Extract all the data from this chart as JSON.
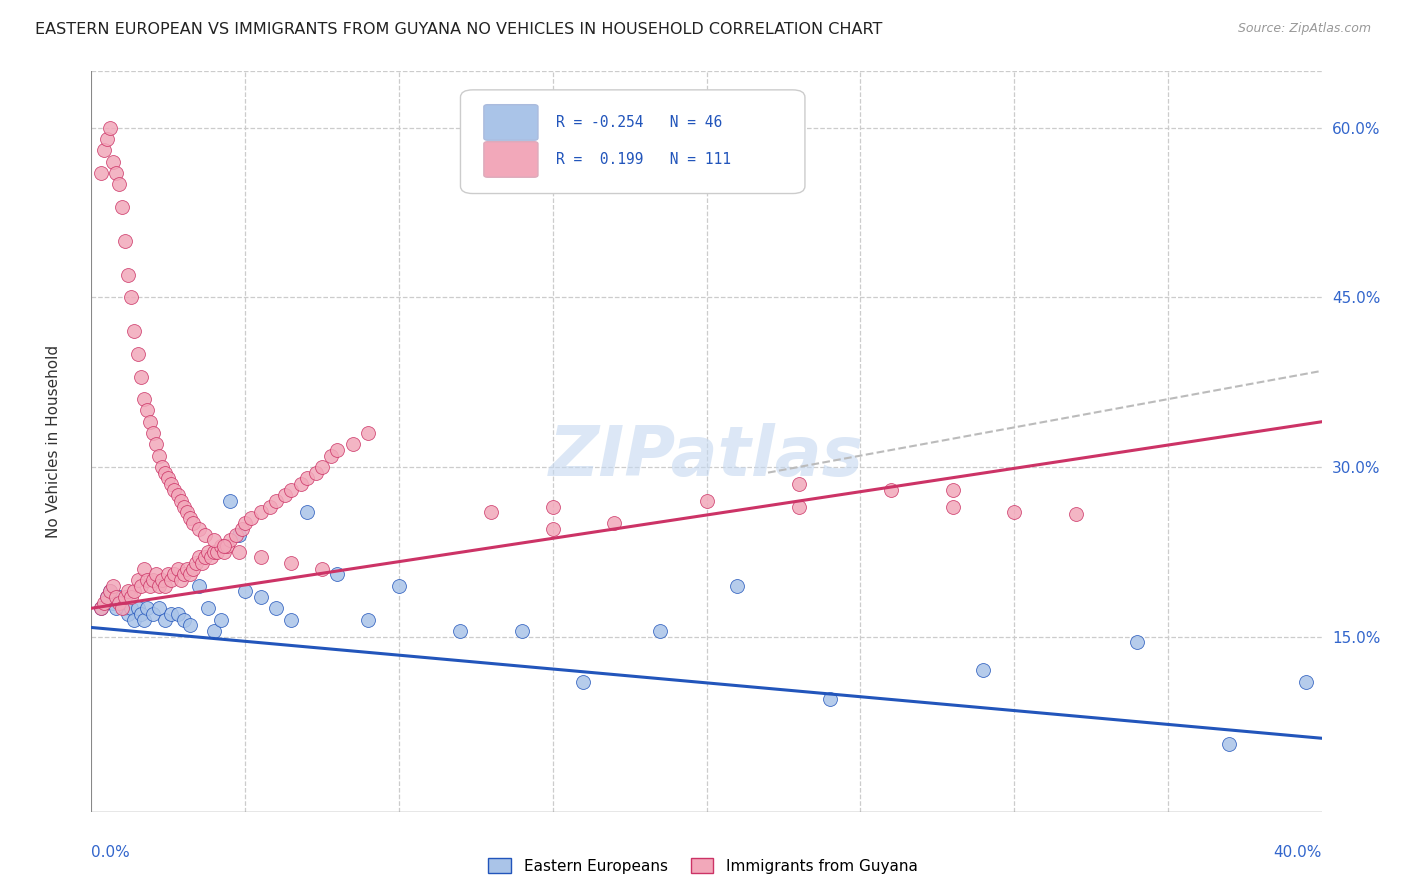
{
  "title": "EASTERN EUROPEAN VS IMMIGRANTS FROM GUYANA NO VEHICLES IN HOUSEHOLD CORRELATION CHART",
  "source": "Source: ZipAtlas.com",
  "ylabel": "No Vehicles in Household",
  "color_eastern": "#aac4e8",
  "color_guyana": "#f2a8ba",
  "line_eastern": "#2255bb",
  "line_guyana": "#cc3366",
  "xlim": [
    0.0,
    0.4
  ],
  "ylim": [
    -0.005,
    0.65
  ],
  "right_ytick_labels": [
    "60.0%",
    "45.0%",
    "30.0%",
    "15.0%"
  ],
  "right_ytick_values": [
    0.6,
    0.45,
    0.3,
    0.15
  ],
  "trendline_eastern": [
    [
      0.0,
      0.158
    ],
    [
      0.4,
      0.06
    ]
  ],
  "trendline_guyana": [
    [
      0.0,
      0.175
    ],
    [
      0.4,
      0.34
    ]
  ],
  "trendline_dashed": [
    [
      0.22,
      0.295
    ],
    [
      0.4,
      0.385
    ]
  ],
  "watermark": "ZIPatlas",
  "eastern_x": [
    0.003,
    0.005,
    0.006,
    0.007,
    0.008,
    0.009,
    0.01,
    0.011,
    0.012,
    0.013,
    0.014,
    0.015,
    0.016,
    0.017,
    0.018,
    0.02,
    0.022,
    0.024,
    0.026,
    0.028,
    0.03,
    0.032,
    0.035,
    0.038,
    0.04,
    0.042,
    0.045,
    0.048,
    0.05,
    0.055,
    0.06,
    0.065,
    0.07,
    0.08,
    0.09,
    0.1,
    0.12,
    0.14,
    0.16,
    0.185,
    0.21,
    0.24,
    0.29,
    0.34,
    0.37,
    0.395
  ],
  "eastern_y": [
    0.175,
    0.185,
    0.19,
    0.18,
    0.175,
    0.185,
    0.18,
    0.175,
    0.17,
    0.175,
    0.165,
    0.175,
    0.17,
    0.165,
    0.175,
    0.17,
    0.175,
    0.165,
    0.17,
    0.17,
    0.165,
    0.16,
    0.195,
    0.175,
    0.155,
    0.165,
    0.27,
    0.24,
    0.19,
    0.185,
    0.175,
    0.165,
    0.26,
    0.205,
    0.165,
    0.195,
    0.155,
    0.155,
    0.11,
    0.155,
    0.195,
    0.095,
    0.12,
    0.145,
    0.055,
    0.11
  ],
  "guyana_x": [
    0.003,
    0.004,
    0.005,
    0.006,
    0.007,
    0.008,
    0.009,
    0.01,
    0.011,
    0.012,
    0.013,
    0.014,
    0.015,
    0.016,
    0.017,
    0.018,
    0.019,
    0.02,
    0.021,
    0.022,
    0.023,
    0.024,
    0.025,
    0.026,
    0.027,
    0.028,
    0.029,
    0.03,
    0.031,
    0.032,
    0.033,
    0.034,
    0.035,
    0.036,
    0.037,
    0.038,
    0.039,
    0.04,
    0.041,
    0.042,
    0.043,
    0.044,
    0.045,
    0.047,
    0.049,
    0.05,
    0.052,
    0.055,
    0.058,
    0.06,
    0.063,
    0.065,
    0.068,
    0.07,
    0.073,
    0.075,
    0.078,
    0.08,
    0.085,
    0.09,
    0.003,
    0.004,
    0.005,
    0.006,
    0.007,
    0.008,
    0.009,
    0.01,
    0.011,
    0.012,
    0.013,
    0.014,
    0.015,
    0.016,
    0.017,
    0.018,
    0.019,
    0.02,
    0.021,
    0.022,
    0.023,
    0.024,
    0.025,
    0.026,
    0.027,
    0.028,
    0.029,
    0.03,
    0.031,
    0.032,
    0.033,
    0.035,
    0.037,
    0.04,
    0.043,
    0.048,
    0.055,
    0.065,
    0.075,
    0.13,
    0.15,
    0.17,
    0.2,
    0.23,
    0.26,
    0.28,
    0.3,
    0.32,
    0.15,
    0.23,
    0.28
  ],
  "guyana_y": [
    0.175,
    0.18,
    0.185,
    0.19,
    0.195,
    0.185,
    0.18,
    0.175,
    0.185,
    0.19,
    0.185,
    0.19,
    0.2,
    0.195,
    0.21,
    0.2,
    0.195,
    0.2,
    0.205,
    0.195,
    0.2,
    0.195,
    0.205,
    0.2,
    0.205,
    0.21,
    0.2,
    0.205,
    0.21,
    0.205,
    0.21,
    0.215,
    0.22,
    0.215,
    0.22,
    0.225,
    0.22,
    0.225,
    0.225,
    0.23,
    0.225,
    0.23,
    0.235,
    0.24,
    0.245,
    0.25,
    0.255,
    0.26,
    0.265,
    0.27,
    0.275,
    0.28,
    0.285,
    0.29,
    0.295,
    0.3,
    0.31,
    0.315,
    0.32,
    0.33,
    0.56,
    0.58,
    0.59,
    0.6,
    0.57,
    0.56,
    0.55,
    0.53,
    0.5,
    0.47,
    0.45,
    0.42,
    0.4,
    0.38,
    0.36,
    0.35,
    0.34,
    0.33,
    0.32,
    0.31,
    0.3,
    0.295,
    0.29,
    0.285,
    0.28,
    0.275,
    0.27,
    0.265,
    0.26,
    0.255,
    0.25,
    0.245,
    0.24,
    0.235,
    0.23,
    0.225,
    0.22,
    0.215,
    0.21,
    0.26,
    0.265,
    0.25,
    0.27,
    0.285,
    0.28,
    0.265,
    0.26,
    0.258,
    0.245,
    0.265,
    0.28
  ]
}
